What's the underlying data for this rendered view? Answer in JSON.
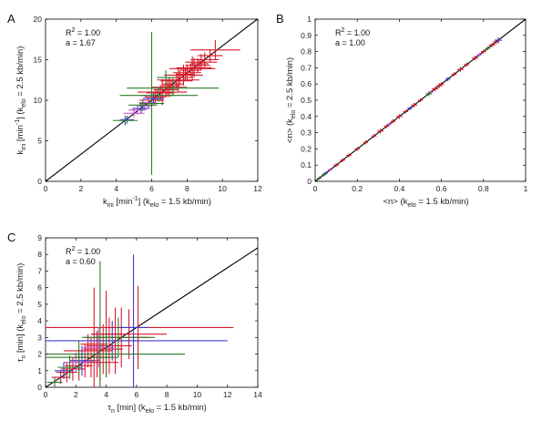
{
  "chart_data": [
    {
      "panel": "A",
      "type": "scatter",
      "xlabel": {
        "main": "k",
        "sub1": "ini",
        "mid": " [min",
        "sup": "-1",
        "end": "] (k",
        "sub2": "elo",
        "tail": " = 1.5 kb/min)"
      },
      "ylabel": {
        "main": "k",
        "sub1": "ini",
        "mid": " [min",
        "sup": "-1",
        "end": "] (k",
        "sub2": "elo",
        "tail": " = 2.5 kb/min)"
      },
      "xlim": [
        0,
        12
      ],
      "ylim": [
        0,
        20
      ],
      "xticks": [
        "0",
        "2",
        "4",
        "6",
        "8",
        "10",
        "12"
      ],
      "yticks": [
        "0",
        "5",
        "10",
        "15",
        "20"
      ],
      "annotations": {
        "r2_prefix": "R",
        "r2_sup": "2",
        "r2_value": " = 1.00",
        "slope": "a = 1.67"
      },
      "fit_line": {
        "slope": 1.67,
        "intercept": 0
      },
      "series": [
        {
          "color": "#d7192a",
          "points": [
            [
              6.2,
              10.4,
              0.6,
              0.8
            ],
            [
              6.5,
              10.9,
              0.8,
              1.0
            ],
            [
              6.8,
              11.3,
              0.7,
              0.9
            ],
            [
              7.0,
              11.6,
              1.0,
              1.2
            ],
            [
              7.2,
              12.0,
              0.6,
              0.7
            ],
            [
              7.4,
              12.4,
              0.9,
              1.0
            ],
            [
              7.6,
              12.8,
              0.7,
              0.9
            ],
            [
              7.8,
              13.1,
              1.1,
              1.3
            ],
            [
              8.0,
              13.4,
              0.8,
              1.0
            ],
            [
              8.2,
              13.7,
              0.6,
              0.8
            ],
            [
              8.4,
              14.0,
              1.0,
              1.2
            ],
            [
              8.6,
              14.3,
              0.7,
              0.9
            ],
            [
              8.8,
              14.7,
              0.9,
              1.0
            ],
            [
              9.0,
              15.0,
              0.8,
              0.9
            ],
            [
              9.3,
              15.5,
              0.7,
              0.8
            ],
            [
              9.6,
              16.2,
              1.4,
              1.2
            ],
            [
              6.0,
              10.0,
              0.7,
              0.9
            ],
            [
              6.6,
              11.0,
              1.4,
              1.6
            ],
            [
              7.1,
              11.8,
              0.5,
              0.6
            ],
            [
              7.5,
              12.5,
              1.2,
              1.4
            ],
            [
              7.9,
              13.2,
              0.5,
              0.7
            ],
            [
              8.3,
              13.9,
              1.3,
              1.5
            ],
            [
              8.7,
              14.5,
              0.5,
              0.6
            ],
            [
              6.3,
              10.6,
              0.9,
              0.7
            ],
            [
              6.9,
              11.5,
              0.6,
              1.1
            ]
          ]
        },
        {
          "color": "#c44ec8",
          "points": [
            [
              5.2,
              8.8,
              0.5,
              0.6
            ],
            [
              5.6,
              9.3,
              0.4,
              0.5
            ],
            [
              5.0,
              8.4,
              0.6,
              0.5
            ],
            [
              5.8,
              9.7,
              0.5,
              0.7
            ]
          ]
        },
        {
          "color": "#3c3cd0",
          "points": [
            [
              4.6,
              7.6,
              0.4,
              0.5
            ],
            [
              5.4,
              9.0,
              0.5,
              0.6
            ],
            [
              6.1,
              10.2,
              0.6,
              0.7
            ]
          ]
        },
        {
          "color": "#2e7a2a",
          "points": [
            [
              4.5,
              7.5,
              0.7,
              0.6
            ],
            [
              5.5,
              9.4,
              0.8,
              0.7
            ],
            [
              6.0,
              9.6,
              0.7,
              8.8
            ],
            [
              7.2,
              11.5,
              2.6,
              1.0
            ],
            [
              6.4,
              10.6,
              2.2,
              0.8
            ],
            [
              6.8,
              12.8,
              0.5,
              0.9
            ]
          ]
        }
      ]
    },
    {
      "panel": "B",
      "type": "scatter",
      "xlabel": {
        "main": "<n>",
        "end": " (k",
        "sub2": "elo",
        "tail": " = 1.5 kb/min)"
      },
      "ylabel": {
        "main": "<n>",
        "end": " (k",
        "sub2": "elo",
        "tail": " = 2.5 kb/min)"
      },
      "xlim": [
        0,
        1
      ],
      "ylim": [
        0,
        1
      ],
      "xticks": [
        "0",
        "0.2",
        "0.4",
        "0.6",
        "0.8",
        "1"
      ],
      "yticks": [
        "0",
        "0.1",
        "0.2",
        "0.3",
        "0.4",
        "0.5",
        "0.6",
        "0.7",
        "0.8",
        "0.9",
        "1"
      ],
      "annotations": {
        "r2_prefix": "R",
        "r2_sup": "2",
        "r2_value": " = 1.00",
        "slope": "a = 1.00"
      },
      "fit_line": {
        "slope": 1.0,
        "intercept": 0
      },
      "series": [
        {
          "color": "#d7192a",
          "points": [
            [
              0.1,
              0.1,
              0.012,
              0.012
            ],
            [
              0.13,
              0.13,
              0.012,
              0.012
            ],
            [
              0.16,
              0.16,
              0.012,
              0.012
            ],
            [
              0.2,
              0.2,
              0.012,
              0.012
            ],
            [
              0.24,
              0.24,
              0.012,
              0.012
            ],
            [
              0.28,
              0.28,
              0.012,
              0.012
            ],
            [
              0.31,
              0.31,
              0.015,
              0.015
            ],
            [
              0.34,
              0.34,
              0.012,
              0.012
            ],
            [
              0.37,
              0.37,
              0.012,
              0.012
            ],
            [
              0.4,
              0.4,
              0.015,
              0.015
            ],
            [
              0.43,
              0.43,
              0.012,
              0.012
            ],
            [
              0.47,
              0.47,
              0.015,
              0.015
            ],
            [
              0.5,
              0.5,
              0.012,
              0.012
            ],
            [
              0.57,
              0.57,
              0.015,
              0.015
            ],
            [
              0.59,
              0.59,
              0.015,
              0.015
            ],
            [
              0.6,
              0.6,
              0.012,
              0.012
            ],
            [
              0.66,
              0.66,
              0.012,
              0.012
            ],
            [
              0.69,
              0.69,
              0.015,
              0.015
            ],
            [
              0.72,
              0.72,
              0.012,
              0.012
            ],
            [
              0.76,
              0.76,
              0.015,
              0.015
            ],
            [
              0.8,
              0.8,
              0.012,
              0.012
            ],
            [
              0.84,
              0.84,
              0.015,
              0.015
            ],
            [
              0.86,
              0.86,
              0.015,
              0.015
            ]
          ]
        },
        {
          "color": "#c44ec8",
          "points": [
            [
              0.07,
              0.07,
              0.01,
              0.01
            ],
            [
              0.35,
              0.35,
              0.012,
              0.012
            ],
            [
              0.55,
              0.55,
              0.012,
              0.012
            ],
            [
              0.78,
              0.78,
              0.012,
              0.012
            ]
          ]
        },
        {
          "color": "#3c3cd0",
          "points": [
            [
              0.05,
              0.05,
              0.01,
              0.01
            ],
            [
              0.45,
              0.45,
              0.012,
              0.012
            ],
            [
              0.63,
              0.63,
              0.012,
              0.012
            ],
            [
              0.87,
              0.87,
              0.018,
              0.018
            ]
          ]
        },
        {
          "color": "#2e7a2a",
          "points": [
            [
              0.02,
              0.02,
              0.01,
              0.01
            ],
            [
              0.04,
              0.04,
              0.01,
              0.01
            ],
            [
              0.54,
              0.54,
              0.015,
              0.015
            ],
            [
              0.82,
              0.82,
              0.012,
              0.012
            ]
          ]
        }
      ]
    },
    {
      "panel": "C",
      "type": "scatter",
      "xlabel": {
        "main": "τ",
        "sub1": "n",
        "mid": " [min] (k",
        "sub2": "elo",
        "tail": " = 1.5 kb/min)"
      },
      "ylabel": {
        "main": "τ",
        "sub1": "n",
        "mid": " [min] (k",
        "sub2": "elo",
        "tail": " = 2.5 kb/min)"
      },
      "xlim": [
        0,
        14
      ],
      "ylim": [
        0,
        9
      ],
      "xticks": [
        "0",
        "2",
        "4",
        "6",
        "8",
        "10",
        "12",
        "14"
      ],
      "yticks": [
        "0",
        "1",
        "2",
        "3",
        "4",
        "5",
        "6",
        "7",
        "8",
        "9"
      ],
      "annotations": {
        "r2_prefix": "R",
        "r2_sup": "2",
        "r2_value": " = 1.00",
        "slope": "a = 0.60"
      },
      "fit_line": {
        "slope": 0.6,
        "intercept": 0
      },
      "series": [
        {
          "color": "#d7192a",
          "points": [
            [
              1.0,
              0.6,
              0.6,
              0.4
            ],
            [
              1.4,
              0.9,
              0.7,
              0.6
            ],
            [
              1.8,
              1.1,
              0.8,
              0.7
            ],
            [
              2.2,
              1.3,
              0.9,
              0.9
            ],
            [
              2.6,
              1.6,
              1.0,
              1.0
            ],
            [
              3.0,
              1.8,
              1.2,
              1.2
            ],
            [
              3.4,
              2.0,
              1.1,
              1.4
            ],
            [
              3.8,
              2.3,
              1.3,
              1.5
            ],
            [
              4.2,
              2.5,
              1.5,
              1.7
            ],
            [
              4.6,
              2.8,
              1.4,
              2.0
            ],
            [
              5.0,
              3.0,
              1.8,
              1.8
            ],
            [
              3.2,
              2.6,
              0.9,
              3.4
            ],
            [
              4.0,
              3.2,
              1.0,
              2.6
            ],
            [
              5.5,
              3.2,
              2.5,
              1.5
            ],
            [
              6.1,
              3.6,
              6.3,
              2.5
            ],
            [
              2.8,
              2.2,
              1.6,
              1.0
            ],
            [
              3.6,
              1.5,
              1.2,
              1.1
            ]
          ]
        },
        {
          "color": "#c44ec8",
          "points": [
            [
              2.0,
              1.5,
              0.8,
              0.6
            ],
            [
              3.5,
              2.4,
              1.0,
              1.2
            ]
          ]
        },
        {
          "color": "#3c3cd0",
          "points": [
            [
              1.2,
              1.0,
              0.6,
              0.5
            ],
            [
              2.4,
              1.6,
              0.8,
              0.9
            ],
            [
              5.8,
              3.6,
              1.0,
              4.4
            ],
            [
              4.4,
              2.8,
              7.6,
              1.2
            ]
          ]
        },
        {
          "color": "#2e7a2a",
          "points": [
            [
              0.6,
              0.3,
              0.5,
              0.3
            ],
            [
              1.6,
              1.2,
              0.8,
              0.7
            ],
            [
              3.6,
              3.0,
              1.0,
              4.6
            ],
            [
              4.8,
              3.0,
              2.4,
              1.2
            ],
            [
              4.0,
              2.0,
              5.2,
              1.4
            ],
            [
              2.2,
              1.8,
              2.6,
              1.0
            ]
          ]
        }
      ]
    }
  ]
}
